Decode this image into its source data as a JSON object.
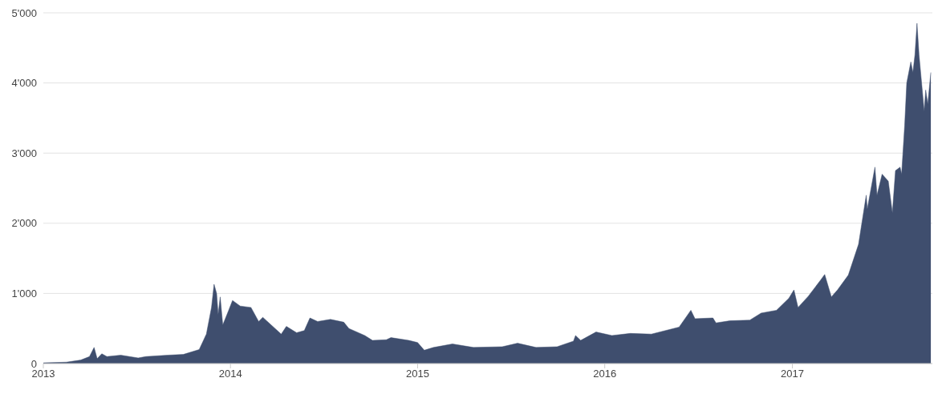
{
  "chart_data": {
    "type": "area",
    "color": "#3f4e6e",
    "grid": "y",
    "xlim": [
      "2013-01-01",
      "2017-10-01"
    ],
    "xticks": [
      "2013",
      "2014",
      "2015",
      "2016",
      "2017"
    ],
    "ylim": [
      0,
      5000
    ],
    "yticks": [
      0,
      {
        "value": 1000,
        "label": "1'000"
      },
      {
        "value": 2000,
        "label": "2'000"
      },
      {
        "value": 3000,
        "label": "3'000"
      },
      {
        "value": 4000,
        "label": "4'000"
      },
      {
        "value": 5000,
        "label": "5'000"
      }
    ],
    "x": [
      "2013-01-01",
      "2013-02-15",
      "2013-03-15",
      "2013-04-01",
      "2013-04-10",
      "2013-04-16",
      "2013-04-25",
      "2013-05-05",
      "2013-06-01",
      "2013-07-05",
      "2013-07-20",
      "2013-09-01",
      "2013-10-01",
      "2013-11-01",
      "2013-11-15",
      "2013-11-25",
      "2013-11-30",
      "2013-12-05",
      "2013-12-08",
      "2013-12-12",
      "2013-12-17",
      "2013-12-28",
      "2014-01-05",
      "2014-01-20",
      "2014-02-10",
      "2014-02-25",
      "2014-03-05",
      "2014-04-10",
      "2014-04-20",
      "2014-05-10",
      "2014-05-25",
      "2014-06-05",
      "2014-06-20",
      "2014-07-15",
      "2014-08-10",
      "2014-08-20",
      "2014-09-20",
      "2014-10-05",
      "2014-11-01",
      "2014-11-10",
      "2014-12-15",
      "2015-01-01",
      "2015-01-14",
      "2015-02-01",
      "2015-03-10",
      "2015-04-20",
      "2015-06-15",
      "2015-07-15",
      "2015-08-20",
      "2015-09-30",
      "2015-11-01",
      "2015-11-05",
      "2015-11-15",
      "2015-12-15",
      "2016-01-15",
      "2016-02-20",
      "2016-04-01",
      "2016-05-25",
      "2016-06-17",
      "2016-06-25",
      "2016-07-30",
      "2016-08-05",
      "2016-09-01",
      "2016-10-10",
      "2016-11-01",
      "2016-12-01",
      "2016-12-25",
      "2017-01-04",
      "2017-01-12",
      "2017-02-01",
      "2017-02-25",
      "2017-03-05",
      "2017-03-18",
      "2017-03-30",
      "2017-04-20",
      "2017-05-10",
      "2017-05-25",
      "2017-05-27",
      "2017-06-11",
      "2017-06-15",
      "2017-06-25",
      "2017-07-07",
      "2017-07-15",
      "2017-07-21",
      "2017-07-30",
      "2017-08-02",
      "2017-08-08",
      "2017-08-12",
      "2017-08-20",
      "2017-08-24",
      "2017-08-28",
      "2017-09-01",
      "2017-09-05",
      "2017-09-15",
      "2017-09-18",
      "2017-09-22",
      "2017-09-28"
    ],
    "values": [
      10,
      20,
      50,
      100,
      230,
      70,
      140,
      100,
      120,
      80,
      100,
      120,
      130,
      200,
      420,
      800,
      1130,
      1000,
      700,
      950,
      550,
      750,
      900,
      820,
      800,
      600,
      660,
      420,
      530,
      440,
      470,
      650,
      600,
      630,
      590,
      500,
      400,
      330,
      340,
      370,
      330,
      300,
      190,
      230,
      280,
      230,
      240,
      290,
      230,
      240,
      320,
      400,
      330,
      450,
      400,
      430,
      420,
      520,
      760,
      640,
      650,
      580,
      610,
      620,
      720,
      760,
      930,
      1050,
      800,
      960,
      1190,
      1270,
      950,
      1050,
      1260,
      1700,
      2400,
      2200,
      2800,
      2400,
      2700,
      2600,
      2150,
      2750,
      2800,
      2700,
      3400,
      4000,
      4300,
      4150,
      4400,
      4850,
      4400,
      3600,
      3900,
      3700,
      4150
    ]
  }
}
